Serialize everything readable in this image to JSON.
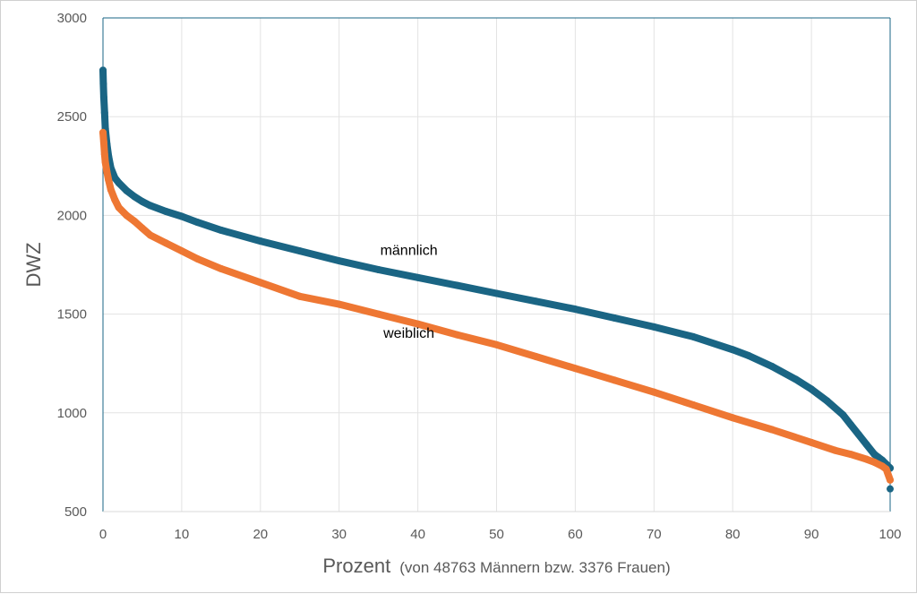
{
  "chart_data": {
    "type": "line",
    "xlabel": "Prozent",
    "xlabel_note": "(von 48763 Männern bzw. 3376 Frauen)",
    "ylabel": "DWZ",
    "xlim": [
      0,
      100
    ],
    "ylim": [
      500,
      3000
    ],
    "xticks": [
      0,
      10,
      20,
      30,
      40,
      50,
      60,
      70,
      80,
      90,
      100
    ],
    "yticks": [
      500,
      1000,
      1500,
      2000,
      2500,
      3000
    ],
    "grid": true,
    "legend": "none",
    "series": [
      {
        "name": "männlich",
        "color": "#1a6584",
        "x": [
          0,
          0.05,
          0.1,
          0.2,
          0.3,
          0.5,
          0.7,
          1,
          1.5,
          2,
          3,
          4,
          5,
          6,
          8,
          10,
          12,
          15,
          20,
          25,
          30,
          35,
          40,
          45,
          50,
          55,
          60,
          65,
          70,
          75,
          80,
          82,
          85,
          88,
          90,
          92,
          94,
          95,
          96,
          97,
          98,
          98.5,
          99,
          99.5,
          100
        ],
        "y": [
          2735,
          2665,
          2600,
          2520,
          2440,
          2360,
          2300,
          2240,
          2190,
          2165,
          2125,
          2095,
          2070,
          2050,
          2020,
          1995,
          1965,
          1925,
          1870,
          1820,
          1770,
          1725,
          1685,
          1645,
          1605,
          1565,
          1525,
          1480,
          1435,
          1385,
          1320,
          1290,
          1235,
          1170,
          1120,
          1060,
          990,
          940,
          890,
          840,
          790,
          775,
          760,
          740,
          720
        ]
      },
      {
        "name": "weiblich",
        "color": "#ee7733",
        "x": [
          0,
          0.1,
          0.2,
          0.3,
          0.5,
          0.7,
          1,
          1.5,
          2,
          3,
          4,
          5,
          6,
          8,
          10,
          12,
          15,
          20,
          25,
          30,
          35,
          40,
          45,
          50,
          55,
          60,
          65,
          70,
          75,
          80,
          85,
          90,
          93,
          95,
          97,
          98,
          99,
          99.5,
          100
        ],
        "y": [
          2420,
          2370,
          2310,
          2270,
          2220,
          2180,
          2130,
          2080,
          2040,
          2000,
          1970,
          1935,
          1900,
          1860,
          1820,
          1780,
          1730,
          1660,
          1590,
          1550,
          1500,
          1450,
          1395,
          1345,
          1285,
          1225,
          1165,
          1105,
          1040,
          975,
          915,
          850,
          810,
          790,
          765,
          750,
          730,
          715,
          660
        ]
      }
    ],
    "annotations": [
      {
        "text": "männlich",
        "x": 40,
        "y": 1800
      },
      {
        "text": "weiblich",
        "x": 40,
        "y": 1380
      }
    ],
    "outliers": [
      {
        "series": "männlich",
        "x": 100,
        "y": 615
      }
    ]
  }
}
